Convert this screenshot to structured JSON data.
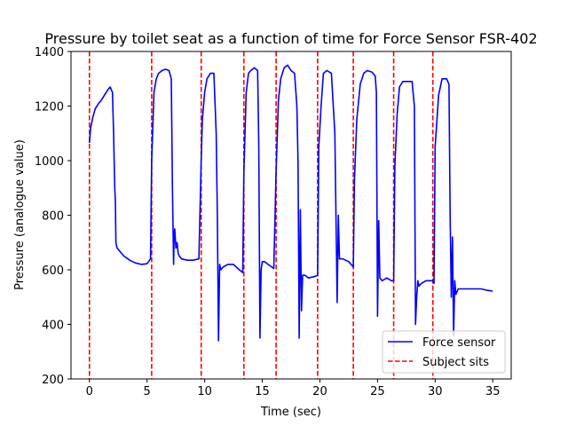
{
  "chart_data": {
    "type": "line",
    "title": "Pressure by toilet seat as a function of time for Force Sensor FSR-402",
    "xlabel": "Time (sec)",
    "ylabel": "Pressure (analogue value)",
    "xlim": [
      -1.6,
      36.6
    ],
    "ylim": [
      200,
      1400
    ],
    "xticks": [
      0,
      5,
      10,
      15,
      20,
      25,
      30,
      35
    ],
    "yticks": [
      200,
      400,
      600,
      800,
      1000,
      1200,
      1400
    ],
    "grid": false,
    "legend_position": "lower-right",
    "series": [
      {
        "name": "Force sensor",
        "kind": "line",
        "color": "#0000ff",
        "x": [
          0.0,
          0.1,
          0.3,
          0.5,
          0.8,
          1.0,
          1.3,
          1.6,
          1.8,
          2.0,
          2.1,
          2.2,
          2.25,
          2.3,
          2.4,
          2.6,
          3.0,
          3.5,
          4.0,
          4.5,
          5.0,
          5.3,
          5.4,
          5.6,
          5.8,
          6.0,
          6.3,
          6.6,
          6.9,
          7.1,
          7.2,
          7.3,
          7.35,
          7.4,
          7.5,
          7.6,
          7.7,
          7.8,
          8.0,
          8.5,
          9.0,
          9.5,
          9.7,
          9.8,
          10.0,
          10.2,
          10.5,
          10.8,
          11.0,
          11.1,
          11.2,
          11.3,
          11.4,
          11.6,
          12.0,
          12.5,
          13.0,
          13.3,
          13.4,
          13.6,
          13.8,
          14.0,
          14.3,
          14.6,
          14.7,
          14.8,
          14.9,
          15.0,
          15.2,
          15.5,
          16.0,
          16.2,
          16.4,
          16.6,
          16.9,
          17.2,
          17.5,
          17.8,
          18.0,
          18.1,
          18.2,
          18.3,
          18.4,
          18.5,
          18.7,
          19.0,
          19.5,
          19.8,
          19.9,
          20.1,
          20.3,
          20.6,
          21.0,
          21.3,
          21.5,
          21.6,
          21.7,
          21.8,
          22.0,
          22.5,
          22.9,
          23.0,
          23.2,
          23.5,
          23.8,
          24.1,
          24.5,
          24.8,
          24.9,
          25.0,
          25.1,
          25.2,
          25.4,
          25.8,
          26.2,
          26.4,
          26.5,
          26.7,
          26.9,
          27.2,
          27.6,
          28.0,
          28.2,
          28.3,
          28.4,
          28.5,
          28.6,
          28.8,
          29.2,
          29.8,
          29.9,
          30.0,
          30.3,
          30.6,
          31.0,
          31.2,
          31.3,
          31.4,
          31.5,
          31.6,
          31.7,
          31.8,
          32.0,
          32.5,
          33.0,
          33.5,
          34.0,
          34.5,
          35.0
        ],
        "y": [
          1065,
          1120,
          1160,
          1190,
          1210,
          1220,
          1240,
          1260,
          1270,
          1250,
          1100,
          900,
          850,
          700,
          680,
          670,
          650,
          635,
          625,
          620,
          622,
          640,
          1000,
          1250,
          1300,
          1320,
          1330,
          1335,
          1330,
          1300,
          900,
          620,
          730,
          750,
          680,
          700,
          660,
          650,
          640,
          635,
          635,
          640,
          1000,
          1150,
          1250,
          1300,
          1320,
          1320,
          1100,
          800,
          340,
          620,
          600,
          610,
          620,
          620,
          600,
          590,
          960,
          1250,
          1320,
          1330,
          1340,
          1330,
          1050,
          350,
          600,
          630,
          630,
          620,
          605,
          960,
          1220,
          1300,
          1340,
          1350,
          1330,
          1320,
          1200,
          1000,
          350,
          820,
          450,
          580,
          580,
          570,
          575,
          580,
          1050,
          1200,
          1320,
          1330,
          1320,
          1100,
          480,
          800,
          640,
          640,
          640,
          630,
          610,
          930,
          1150,
          1280,
          1320,
          1330,
          1325,
          1310,
          1250,
          430,
          780,
          570,
          560,
          570,
          560,
          560,
          980,
          1170,
          1270,
          1290,
          1290,
          1290,
          1200,
          400,
          500,
          560,
          540,
          550,
          560,
          560,
          550,
          1050,
          1240,
          1300,
          1300,
          1280,
          800,
          500,
          720,
          360,
          560,
          510,
          530,
          530,
          530,
          530,
          530,
          525,
          522
        ]
      },
      {
        "name": "Subject sits",
        "kind": "vlines",
        "color": "#ff0000",
        "x": [
          0.0,
          5.4,
          9.7,
          13.4,
          16.2,
          19.8,
          22.9,
          26.4,
          29.8
        ]
      }
    ]
  }
}
